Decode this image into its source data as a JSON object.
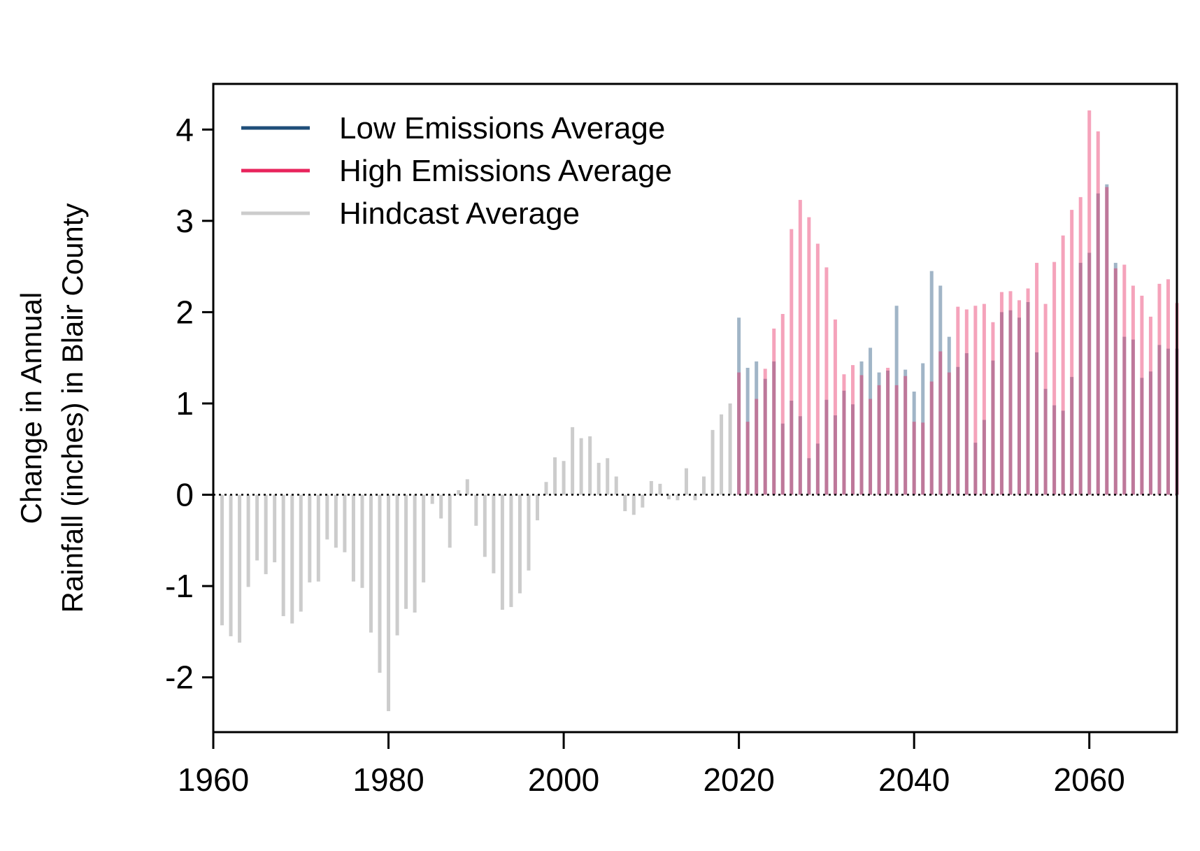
{
  "chart_data": {
    "type": "bar",
    "title": "",
    "xlabel": "",
    "ylabel_lines": [
      "Change in Annual",
      "Rainfall (inches) in Blair County"
    ],
    "xlim": [
      1960,
      2070
    ],
    "ylim": [
      -2.6,
      4.5
    ],
    "x_ticks": [
      1960,
      1980,
      2000,
      2020,
      2040,
      2060
    ],
    "y_ticks": [
      -2,
      -1,
      0,
      1,
      2,
      3,
      4
    ],
    "x_tick_labels": [
      "1960",
      "1980",
      "2000",
      "2020",
      "2040",
      "2060"
    ],
    "y_tick_labels": [
      "-2",
      "-1",
      "0",
      "1",
      "2",
      "3",
      "4"
    ],
    "baseline": 0,
    "legend": {
      "position": "top-left",
      "items": [
        {
          "label": "Low Emissions Average",
          "color": "#1f4e79"
        },
        {
          "label": "High Emissions Average",
          "color": "#e8245c"
        },
        {
          "label": "Hindcast Average",
          "color": "#cccccc"
        }
      ]
    },
    "series": [
      {
        "name": "Hindcast Average",
        "color": "#cccccc",
        "x": [
          1961,
          1962,
          1963,
          1964,
          1965,
          1966,
          1967,
          1968,
          1969,
          1970,
          1971,
          1972,
          1973,
          1974,
          1975,
          1976,
          1977,
          1978,
          1979,
          1980,
          1981,
          1982,
          1983,
          1984,
          1985,
          1986,
          1987,
          1988,
          1989,
          1990,
          1991,
          1992,
          1993,
          1994,
          1995,
          1996,
          1997,
          1998,
          1999,
          2000,
          2001,
          2002,
          2003,
          2004,
          2005,
          2006,
          2007,
          2008,
          2009,
          2010,
          2011,
          2012,
          2013,
          2014,
          2015,
          2016,
          2017,
          2018,
          2019
        ],
        "values": [
          -1.43,
          -1.55,
          -1.62,
          -1.01,
          -0.72,
          -0.87,
          -0.74,
          -1.33,
          -1.41,
          -1.28,
          -0.96,
          -0.95,
          -0.49,
          -0.58,
          -0.63,
          -0.95,
          -1.02,
          -1.51,
          -1.95,
          -2.37,
          -1.54,
          -1.25,
          -1.29,
          -0.96,
          -0.1,
          -0.26,
          -0.58,
          0.05,
          0.17,
          -0.34,
          -0.68,
          -0.86,
          -1.26,
          -1.23,
          -1.08,
          -0.83,
          -0.28,
          0.14,
          0.41,
          0.37,
          0.74,
          0.62,
          0.64,
          0.35,
          0.4,
          0.2,
          -0.18,
          -0.22,
          -0.14,
          0.15,
          0.12,
          -0.05,
          -0.06,
          0.29,
          -0.06,
          0.2,
          0.71,
          0.88,
          1.0
        ]
      },
      {
        "name": "Low Emissions Average",
        "color": "#1f4e79",
        "x": [
          2020,
          2021,
          2022,
          2023,
          2024,
          2025,
          2026,
          2027,
          2028,
          2029,
          2030,
          2031,
          2032,
          2033,
          2034,
          2035,
          2036,
          2037,
          2038,
          2039,
          2040,
          2041,
          2042,
          2043,
          2044,
          2045,
          2046,
          2047,
          2048,
          2049,
          2050,
          2051,
          2052,
          2053,
          2054,
          2055,
          2056,
          2057,
          2058,
          2059,
          2060,
          2061,
          2062,
          2063,
          2064,
          2065,
          2066,
          2067,
          2068,
          2069,
          2070
        ],
        "values": [
          1.94,
          1.39,
          1.46,
          1.27,
          1.46,
          0.78,
          1.03,
          0.86,
          0.4,
          0.56,
          1.04,
          0.87,
          1.14,
          0.99,
          1.46,
          1.61,
          1.34,
          1.36,
          2.07,
          1.37,
          1.13,
          1.44,
          2.45,
          2.29,
          1.73,
          1.4,
          1.55,
          0.57,
          0.82,
          1.47,
          2.0,
          2.02,
          1.94,
          2.11,
          1.56,
          1.16,
          0.98,
          0.92,
          1.29,
          2.54,
          2.65,
          3.3,
          3.4,
          2.54,
          1.73,
          1.7,
          1.28,
          1.35,
          1.64,
          1.6,
          1.6
        ]
      },
      {
        "name": "High Emissions Average",
        "color": "#e8245c",
        "x": [
          2020,
          2021,
          2022,
          2023,
          2024,
          2025,
          2026,
          2027,
          2028,
          2029,
          2030,
          2031,
          2032,
          2033,
          2034,
          2035,
          2036,
          2037,
          2038,
          2039,
          2040,
          2041,
          2042,
          2043,
          2044,
          2045,
          2046,
          2047,
          2048,
          2049,
          2050,
          2051,
          2052,
          2053,
          2054,
          2055,
          2056,
          2057,
          2058,
          2059,
          2060,
          2061,
          2062,
          2063,
          2064,
          2065,
          2066,
          2067,
          2068,
          2069,
          2070
        ],
        "values": [
          1.34,
          0.8,
          1.05,
          1.38,
          1.82,
          1.98,
          2.91,
          3.23,
          3.04,
          2.75,
          2.49,
          1.92,
          1.32,
          1.42,
          1.31,
          1.05,
          1.2,
          1.39,
          1.2,
          1.3,
          0.8,
          0.79,
          1.24,
          1.57,
          1.34,
          2.06,
          2.03,
          2.07,
          2.09,
          1.89,
          2.22,
          2.23,
          2.13,
          2.26,
          2.54,
          2.09,
          2.55,
          2.84,
          3.12,
          3.26,
          4.21,
          3.98,
          3.37,
          2.48,
          2.52,
          2.29,
          2.18,
          1.95,
          2.31,
          2.36,
          2.1
        ]
      }
    ]
  }
}
